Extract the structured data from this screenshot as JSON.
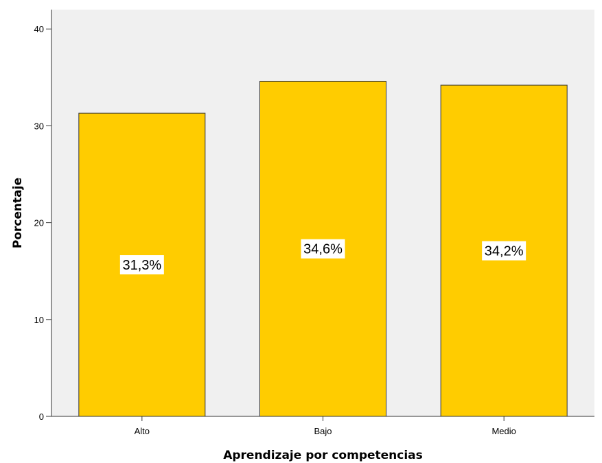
{
  "chart_data": {
    "type": "bar",
    "categories": [
      "Alto",
      "Bajo",
      "Medio"
    ],
    "values": [
      31.3,
      34.6,
      34.2
    ],
    "data_labels": [
      "31,3%",
      "34,6%",
      "34,2%"
    ],
    "xlabel": "Aprendizaje por competencias",
    "ylabel": "Porcentaje",
    "ylim": [
      0,
      42
    ],
    "yticks": [
      0,
      10,
      20,
      30,
      40
    ],
    "grid": false,
    "legend": "none",
    "colors": {
      "bar": "#FFCC00",
      "bar_border": "#333333",
      "plot_background": "#F0F0F0",
      "label_background": "#FFFFFF"
    }
  }
}
